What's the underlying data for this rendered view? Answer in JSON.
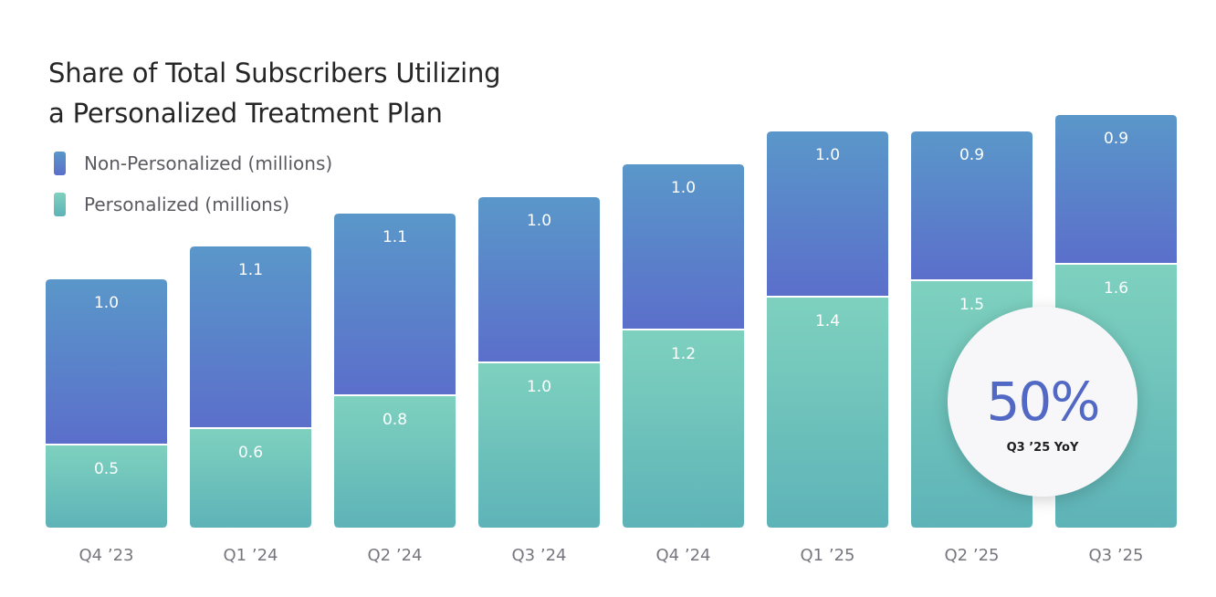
{
  "chart_data": {
    "type": "bar",
    "stacked": true,
    "title": [
      "Share of Total Subscribers Utilizing",
      "a Personalized Treatment Plan"
    ],
    "categories": [
      "Q4 ’23",
      "Q1 ’24",
      "Q2 ’24",
      "Q3 ’24",
      "Q4 ’24",
      "Q1 ’25",
      "Q2 ’25",
      "Q3 ’25"
    ],
    "series": [
      {
        "name": "Personalized (millions)",
        "values": [
          0.5,
          0.6,
          0.8,
          1.0,
          1.2,
          1.4,
          1.5,
          1.6
        ],
        "color_top": "#7ed1be",
        "color_bottom": "#5eb3b8"
      },
      {
        "name": "Non-Personalized (millions)",
        "values": [
          1.0,
          1.1,
          1.1,
          1.0,
          1.0,
          1.0,
          0.9,
          0.9
        ],
        "color_top": "#5a97c9",
        "color_bottom": "#5b6fcb"
      }
    ],
    "legend_position": "top-left",
    "grid": false,
    "annotation": {
      "value": "50%",
      "caption": "Q3 ’25 YoY",
      "color": "#5168c4"
    }
  }
}
